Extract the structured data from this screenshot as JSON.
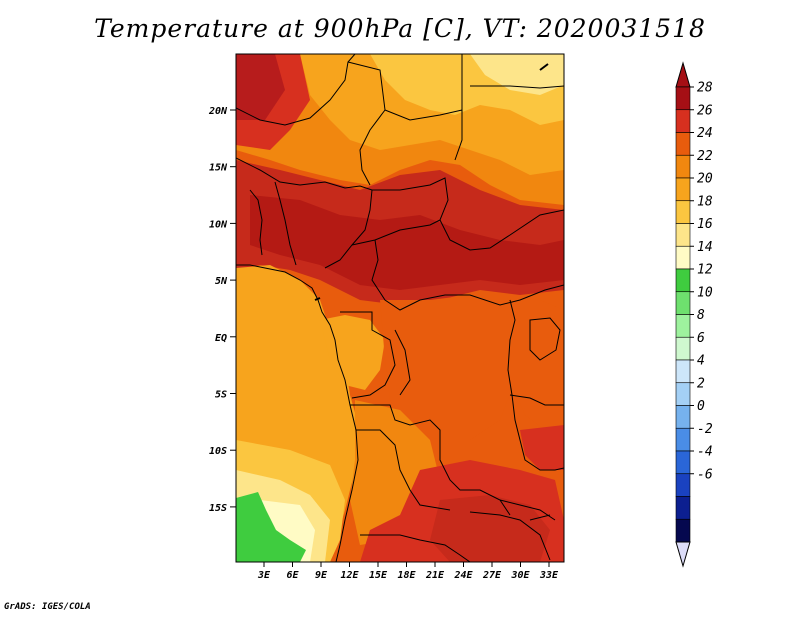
{
  "title": "Temperature at 900hPa [C], VT: 2020031518",
  "credit": "GrADS: IGES/COLA",
  "lat_labels": [
    "20N",
    "15N",
    "10N",
    "5N",
    "EQ",
    "5S",
    "10S",
    "15S"
  ],
  "lon_labels": [
    "3E",
    "6E",
    "9E",
    "12E",
    "15E",
    "18E",
    "21E",
    "24E",
    "27E",
    "30E",
    "33E"
  ],
  "colorbar": {
    "labels": [
      "28",
      "26",
      "24",
      "22",
      "20",
      "18",
      "16",
      "14",
      "12",
      "10",
      "8",
      "6",
      "4",
      "2",
      "0",
      "-2",
      "-4",
      "-6"
    ],
    "colors": [
      "#a50f15",
      "#d7301f",
      "#e85c0d",
      "#f1870f",
      "#f7a41d",
      "#fbc640",
      "#fde58a",
      "#fffbc5",
      "#3fcc3f",
      "#6ee06e",
      "#9ef29e",
      "#cff8cf",
      "#cde6fa",
      "#a4d0f5",
      "#76b2ee",
      "#4a8de6",
      "#2a66d8",
      "#1a42c0",
      "#0c1f90",
      "#05084f"
    ],
    "over_color": "#a50f15",
    "under_color": "#dcdcf8"
  }
}
